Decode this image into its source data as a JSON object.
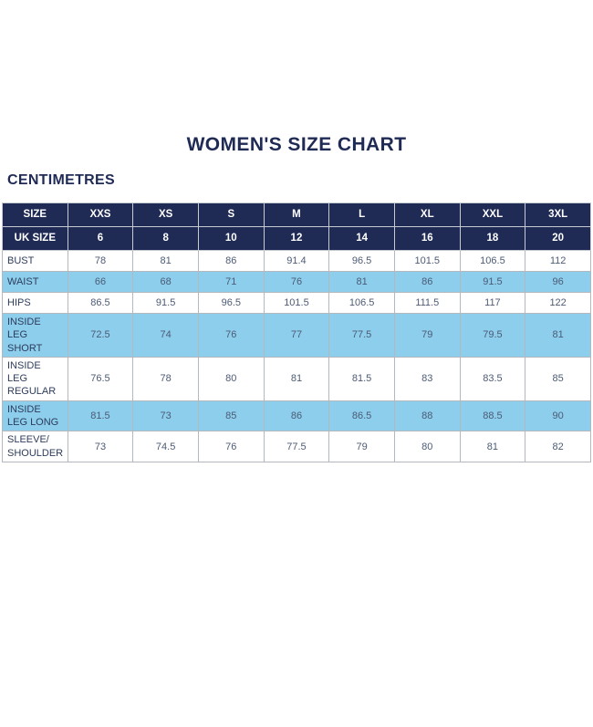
{
  "colors": {
    "navy": "#1f2a55",
    "row_blue": "#8cceec",
    "label_text": "#2e3c5c",
    "value_text": "#4d5b75"
  },
  "chart_data": {
    "type": "table",
    "title": "WOMEN'S SIZE CHART",
    "unit_label": "CENTIMETRES",
    "header_rows": [
      {
        "label": "SIZE",
        "values": [
          "XXS",
          "XS",
          "S",
          "M",
          "L",
          "XL",
          "XXL",
          "3XL"
        ]
      },
      {
        "label": "UK SIZE",
        "values": [
          "6",
          "8",
          "10",
          "12",
          "14",
          "16",
          "18",
          "20"
        ]
      }
    ],
    "rows": [
      {
        "label": "BUST",
        "values": [
          "78",
          "81",
          "86",
          "91.4",
          "96.5",
          "101.5",
          "106.5",
          "112"
        ]
      },
      {
        "label": "WAIST",
        "values": [
          "66",
          "68",
          "71",
          "76",
          "81",
          "86",
          "91.5",
          "96"
        ]
      },
      {
        "label": "HIPS",
        "values": [
          "86.5",
          "91.5",
          "96.5",
          "101.5",
          "106.5",
          "111.5",
          "117",
          "122"
        ]
      },
      {
        "label": "INSIDE LEG SHORT",
        "values": [
          "72.5",
          "74",
          "76",
          "77",
          "77.5",
          "79",
          "79.5",
          "81"
        ]
      },
      {
        "label": "INSIDE LEG REGULAR",
        "values": [
          "76.5",
          "78",
          "80",
          "81",
          "81.5",
          "83",
          "83.5",
          "85"
        ]
      },
      {
        "label": "INSIDE LEG LONG",
        "values": [
          "81.5",
          "73",
          "85",
          "86",
          "86.5",
          "88",
          "88.5",
          "90"
        ]
      },
      {
        "label": "SLEEVE/ SHOULDER",
        "values": [
          "73",
          "74.5",
          "76",
          "77.5",
          "79",
          "80",
          "81",
          "82"
        ]
      }
    ]
  }
}
